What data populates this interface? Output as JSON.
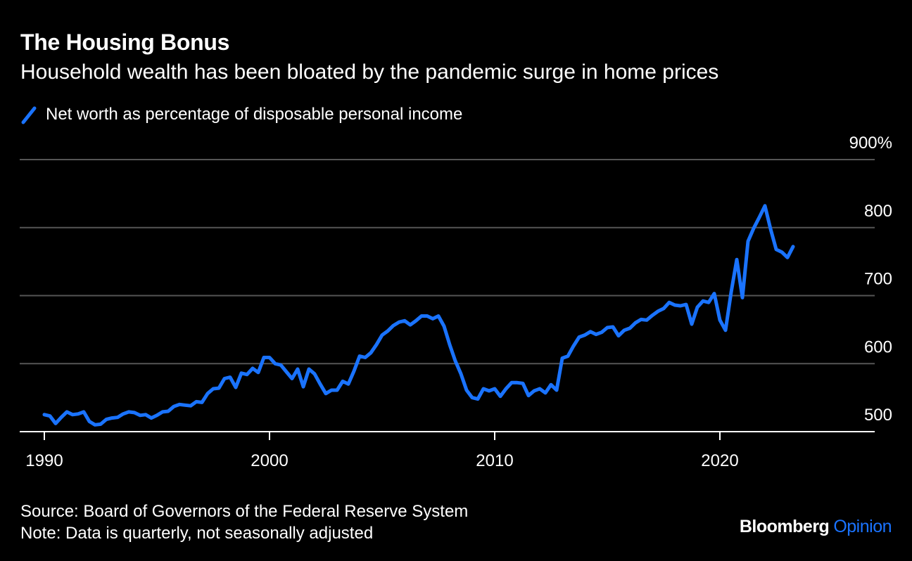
{
  "header": {
    "title": "The Housing Bonus",
    "subtitle": "Household wealth has been bloated by the pandemic surge in home prices"
  },
  "footer": {
    "source": "Source: Board of Governors of the Federal Reserve System",
    "note": "Note: Data is quarterly, not seasonally adjusted"
  },
  "brand": {
    "name": "Bloomberg",
    "section": "Opinion"
  },
  "colors": {
    "background": "#000000",
    "series": "#1a73ff",
    "grid": "#555555",
    "text": "#ffffff"
  },
  "chart_data": {
    "type": "line",
    "title": "",
    "xlabel": "",
    "ylabel": "",
    "xlim": [
      1990,
      2025.8
    ],
    "ylim": [
      490,
      900
    ],
    "x_ticks": [
      1990,
      2000,
      2010,
      2020
    ],
    "y_ticks": [
      500,
      600,
      700,
      800,
      900
    ],
    "y_tick_labels": [
      "500",
      "600",
      "700",
      "800",
      "900%"
    ],
    "grid": true,
    "legend_position": "top-left",
    "series": [
      {
        "name": "Net worth as percentage of disposable personal income",
        "color": "#1a73ff",
        "x": [
          1990.0,
          1990.25,
          1990.5,
          1990.75,
          1991.0,
          1991.25,
          1991.5,
          1991.75,
          1992.0,
          1992.25,
          1992.5,
          1992.75,
          1993.0,
          1993.25,
          1993.5,
          1993.75,
          1994.0,
          1994.25,
          1994.5,
          1994.75,
          1995.0,
          1995.25,
          1995.5,
          1995.75,
          1996.0,
          1996.25,
          1996.5,
          1996.75,
          1997.0,
          1997.25,
          1997.5,
          1997.75,
          1998.0,
          1998.25,
          1998.5,
          1998.75,
          1999.0,
          1999.25,
          1999.5,
          1999.75,
          2000.0,
          2000.25,
          2000.5,
          2000.75,
          2001.0,
          2001.25,
          2001.5,
          2001.75,
          2002.0,
          2002.25,
          2002.5,
          2002.75,
          2003.0,
          2003.25,
          2003.5,
          2003.75,
          2004.0,
          2004.25,
          2004.5,
          2004.75,
          2005.0,
          2005.25,
          2005.5,
          2005.75,
          2006.0,
          2006.25,
          2006.5,
          2006.75,
          2007.0,
          2007.25,
          2007.5,
          2007.75,
          2008.0,
          2008.25,
          2008.5,
          2008.75,
          2009.0,
          2009.25,
          2009.5,
          2009.75,
          2010.0,
          2010.25,
          2010.5,
          2010.75,
          2011.0,
          2011.25,
          2011.5,
          2011.75,
          2012.0,
          2012.25,
          2012.5,
          2012.75,
          2013.0,
          2013.25,
          2013.5,
          2013.75,
          2014.0,
          2014.25,
          2014.5,
          2014.75,
          2015.0,
          2015.25,
          2015.5,
          2015.75,
          2016.0,
          2016.25,
          2016.5,
          2016.75,
          2017.0,
          2017.25,
          2017.5,
          2017.75,
          2018.0,
          2018.25,
          2018.5,
          2018.75,
          2019.0,
          2019.25,
          2019.5,
          2019.75,
          2020.0,
          2020.25,
          2020.5,
          2020.75,
          2021.0,
          2021.25,
          2021.5,
          2021.75,
          2022.0,
          2022.25,
          2022.5,
          2022.75,
          2023.0,
          2023.25
        ],
        "values": [
          525,
          523,
          512,
          521,
          529,
          525,
          526,
          529,
          515,
          510,
          511,
          518,
          520,
          521,
          526,
          529,
          528,
          524,
          525,
          520,
          524,
          529,
          530,
          537,
          540,
          539,
          538,
          544,
          543,
          556,
          563,
          564,
          578,
          580,
          565,
          586,
          584,
          593,
          587,
          609,
          609,
          600,
          598,
          588,
          578,
          592,
          566,
          592,
          585,
          570,
          556,
          561,
          561,
          574,
          570,
          589,
          611,
          609,
          616,
          628,
          642,
          648,
          656,
          661,
          663,
          657,
          663,
          670,
          670,
          666,
          670,
          655,
          628,
          604,
          585,
          561,
          550,
          548,
          563,
          560,
          563,
          552,
          563,
          572,
          572,
          571,
          553,
          560,
          563,
          557,
          569,
          561,
          608,
          611,
          626,
          639,
          642,
          647,
          643,
          646,
          653,
          654,
          641,
          649,
          652,
          660,
          665,
          664,
          671,
          677,
          681,
          690,
          686,
          685,
          687,
          658,
          683,
          692,
          690,
          703,
          664,
          649,
          705,
          753,
          697,
          780,
          799,
          815,
          832,
          798,
          768,
          764,
          756,
          772
        ]
      }
    ]
  }
}
